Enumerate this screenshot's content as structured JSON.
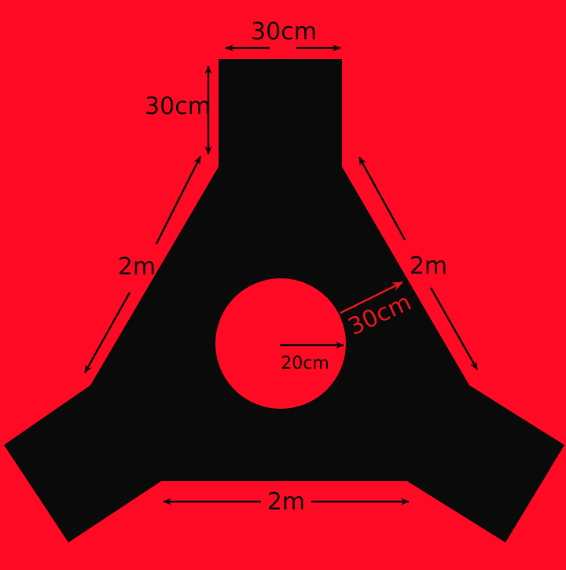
{
  "colors": {
    "background": "#ff0a24",
    "shape": "#0a0a0a",
    "highlight": "#e8141c"
  },
  "labels": {
    "top_width": "30cm",
    "top_height": "30cm",
    "left_side": "2m",
    "right_side": "2m",
    "bottom_side": "2m",
    "hole_offset": "30cm",
    "hole_radius": "20cm"
  }
}
